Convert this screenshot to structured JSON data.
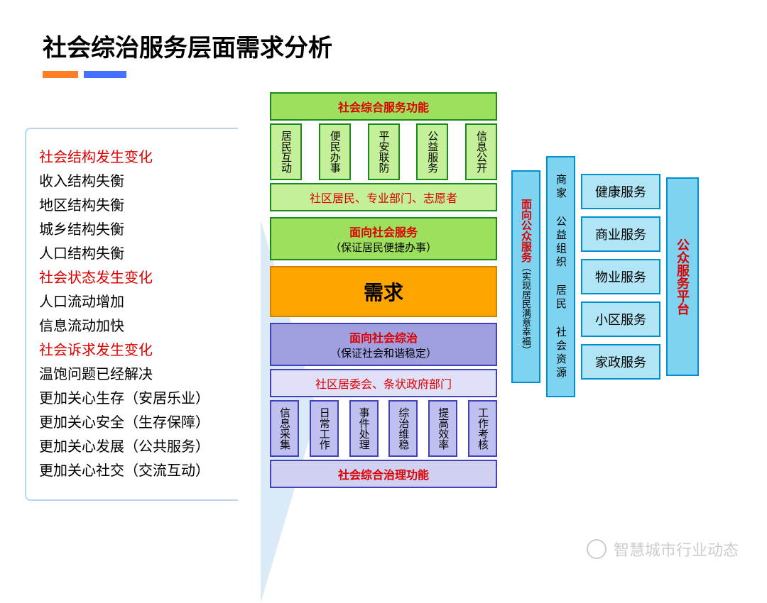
{
  "title": "社会综治服务层面需求分析",
  "left_list": [
    {
      "text": "社会结构发生变化",
      "red": true
    },
    {
      "text": "收入结构失衡",
      "red": false
    },
    {
      "text": "地区结构失衡",
      "red": false
    },
    {
      "text": "城乡结构失衡",
      "red": false
    },
    {
      "text": "人口结构失衡",
      "red": false
    },
    {
      "text": "社会状态发生变化",
      "red": true
    },
    {
      "text": "人口流动增加",
      "red": false
    },
    {
      "text": "信息流动加快",
      "red": false
    },
    {
      "text": "社会诉求发生变化",
      "red": true
    },
    {
      "text": "温饱问题已经解决",
      "red": false
    },
    {
      "text": "更加关心生存（安居乐业）",
      "red": false
    },
    {
      "text": "更加关心安全（生存保障）",
      "red": false
    },
    {
      "text": "更加关心发展（公共服务）",
      "red": false
    },
    {
      "text": "更加关心社交（交流互动）",
      "red": false
    }
  ],
  "center": {
    "top_title": "社会综合服务功能",
    "top_items": [
      "居民互动",
      "便民办事",
      "平安联防",
      "公益服务",
      "信息公开"
    ],
    "actors_top": "社区居民、专业部门、志愿者",
    "svc_top_title": "面向社会服务",
    "svc_top_sub": "（保证居民便捷办事）",
    "demand": "需求",
    "svc_bot_title": "面向社会综治",
    "svc_bot_sub": "（保证社会和谐稳定）",
    "actors_bot": "社区居委会、条状政府部门",
    "bot_items": [
      "信息采集",
      "日常工作",
      "事件处理",
      "综治维稳",
      "提高效率",
      "工作考核"
    ],
    "bot_title": "社会综合治理功能"
  },
  "right": {
    "col1_title": "面向公众服务",
    "col1_sub": "（实现居民满意幸福）",
    "col2": "商家 公益组织 居民 社会资源",
    "services": [
      "健康服务",
      "商业服务",
      "物业服务",
      "小区服务",
      "家政服务"
    ],
    "platform": "公众服务平台"
  },
  "watermark": "智慧城市行业动态",
  "colors": {
    "green": "#9de05e",
    "green_pale": "#c5f09a",
    "green_border": "#1a8a1a",
    "blue": "#7dd3f0",
    "blue_border": "#0090d0",
    "purple": "#c0c0f0",
    "purple_border": "#4040c0",
    "orange": "#ffa500",
    "red_text": "#d00"
  }
}
